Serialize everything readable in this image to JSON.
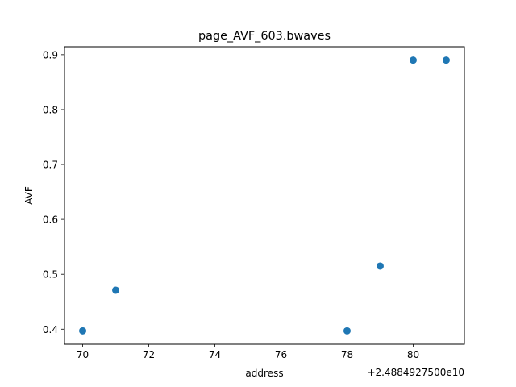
{
  "chart_data": {
    "type": "scatter",
    "title": "page_AVF_603.bwaves",
    "xlabel": "address",
    "ylabel": "AVF",
    "x_offset_label": "+2.4884927500e10",
    "x": [
      70,
      71,
      78,
      79,
      80,
      81
    ],
    "y": [
      0.397,
      0.471,
      0.397,
      0.515,
      0.89,
      0.89
    ],
    "xlim": [
      69.45,
      81.55
    ],
    "ylim": [
      0.3725,
      0.9145
    ],
    "x_ticks": [
      70,
      72,
      74,
      76,
      78,
      80
    ],
    "x_tick_labels": [
      "70",
      "72",
      "74",
      "76",
      "78",
      "80"
    ],
    "y_ticks": [
      0.4,
      0.5,
      0.6,
      0.7,
      0.8,
      0.9
    ],
    "y_tick_labels": [
      "0.4",
      "0.5",
      "0.6",
      "0.7",
      "0.8",
      "0.9"
    ],
    "marker_color": "#1f77b4",
    "grid": false,
    "legend": "none"
  }
}
